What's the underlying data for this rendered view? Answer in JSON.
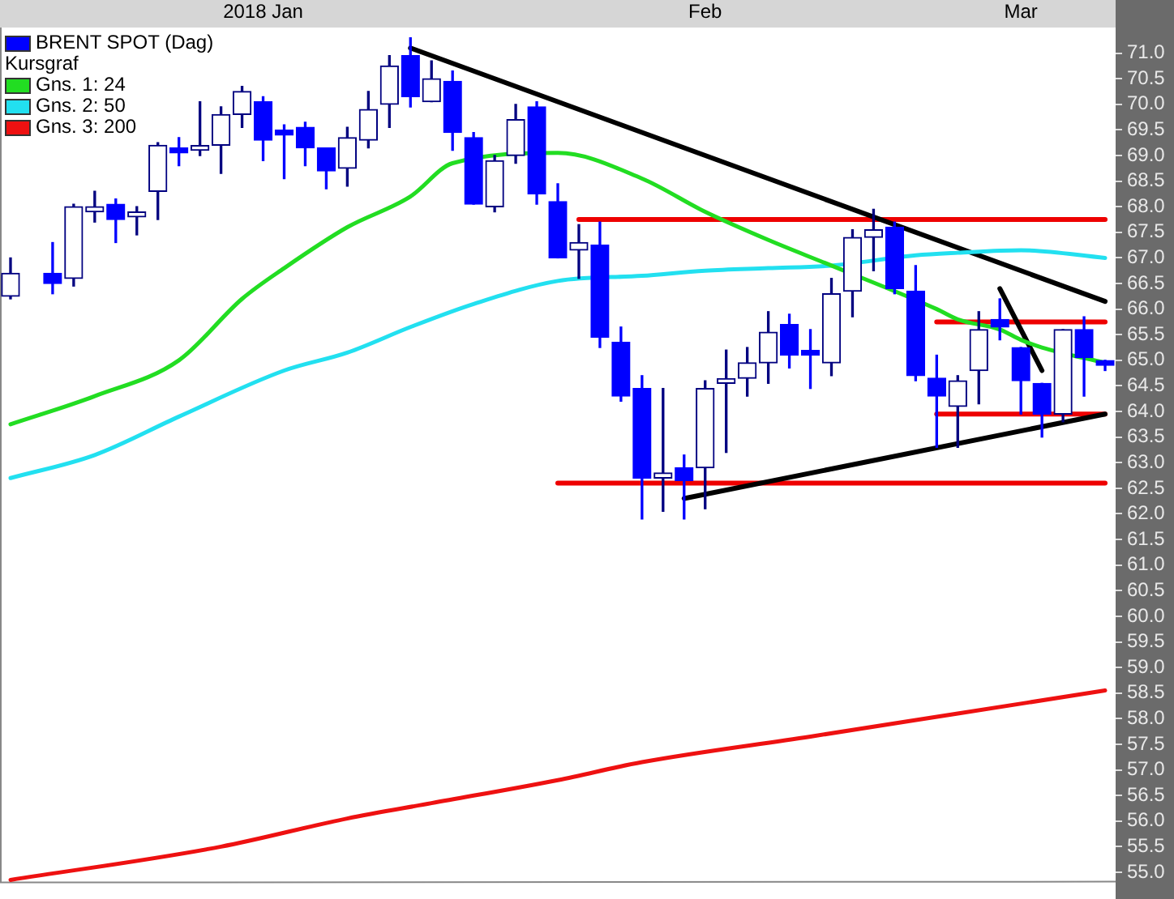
{
  "chart_data": {
    "type": "candlestick",
    "legend_title": "Kursgraf",
    "legend": "top left",
    "grid": false,
    "categories": [
      null,
      null,
      null,
      null,
      null,
      null,
      null,
      null,
      null,
      null,
      null,
      null,
      "2018 Jan",
      null,
      null,
      null,
      null,
      null,
      null,
      null,
      null,
      null,
      null,
      null,
      null,
      null,
      null,
      null,
      null,
      null,
      null,
      null,
      null,
      "Feb",
      null,
      null,
      null,
      null,
      null,
      null,
      null,
      null,
      null,
      null,
      null,
      null,
      null,
      null,
      "Mar",
      null,
      null,
      null,
      null
    ],
    "ylim": [
      54.8,
      71.5
    ],
    "yticks": [
      {
        "value": 55,
        "label": "55.0"
      },
      {
        "value": 55.5,
        "label": "55.5"
      },
      {
        "value": 56,
        "label": "56.0"
      },
      {
        "value": 56.5,
        "label": "56.5"
      },
      {
        "value": 57,
        "label": "57.0"
      },
      {
        "value": 57.5,
        "label": "57.5"
      },
      {
        "value": 58,
        "label": "58.0"
      },
      {
        "value": 58.5,
        "label": "58.5"
      },
      {
        "value": 59,
        "label": "59.0"
      },
      {
        "value": 59.5,
        "label": "59.5"
      },
      {
        "value": 60,
        "label": "60.0"
      },
      {
        "value": 60.5,
        "label": "60.5"
      },
      {
        "value": 61,
        "label": "61.0"
      },
      {
        "value": 61.5,
        "label": "61.5"
      },
      {
        "value": 62,
        "label": "62.0"
      },
      {
        "value": 62.5,
        "label": "62.5"
      },
      {
        "value": 63,
        "label": "63.0"
      },
      {
        "value": 63.5,
        "label": "63.5"
      },
      {
        "value": 64,
        "label": "64.0"
      },
      {
        "value": 64.5,
        "label": "64.5"
      },
      {
        "value": 65,
        "label": "65.0"
      },
      {
        "value": 65.5,
        "label": "65.5"
      },
      {
        "value": 66,
        "label": "66.0"
      },
      {
        "value": 66.5,
        "label": "66.5"
      },
      {
        "value": 67,
        "label": "67.0"
      },
      {
        "value": 67.5,
        "label": "67.5"
      },
      {
        "value": 68,
        "label": "68.0"
      },
      {
        "value": 68.5,
        "label": "68.5"
      },
      {
        "value": 69,
        "label": "69.0"
      },
      {
        "value": 69.5,
        "label": "69.5"
      },
      {
        "value": 70,
        "label": "70.0"
      },
      {
        "value": 70.5,
        "label": "70.5"
      },
      {
        "value": 71,
        "label": "71.0"
      }
    ],
    "series": [
      {
        "type": "line",
        "name": "Gns. 1: 24",
        "color": "#22dd22",
        "values": [
          63.75,
          null,
          null,
          null,
          64.3,
          null,
          null,
          null,
          65.0,
          null,
          null,
          66.2,
          null,
          66.8,
          null,
          null,
          67.6,
          null,
          null,
          68.2,
          null,
          68.85,
          null,
          null,
          null,
          null,
          69.05,
          null,
          null,
          null,
          68.55,
          null,
          null,
          67.9,
          null,
          null,
          67.35,
          null,
          null,
          66.85,
          null,
          null,
          null,
          null,
          66.0,
          65.8,
          null,
          65.6,
          65.4,
          65.25,
          null,
          null,
          64.95
        ]
      },
      {
        "type": "line",
        "name": "Gns. 2: 50",
        "color": "#22e0f0",
        "values": [
          62.7,
          null,
          null,
          null,
          63.15,
          null,
          null,
          null,
          63.9,
          null,
          null,
          null,
          null,
          64.8,
          null,
          null,
          65.15,
          null,
          null,
          65.65,
          null,
          null,
          66.1,
          null,
          null,
          null,
          66.55,
          null,
          null,
          null,
          66.65,
          null,
          null,
          66.75,
          null,
          null,
          66.8,
          null,
          null,
          66.85,
          null,
          null,
          null,
          67.05,
          null,
          67.1,
          null,
          null,
          67.15,
          null,
          null,
          null,
          67.0
        ]
      },
      {
        "type": "line",
        "name": "Gns. 3: 200",
        "color": "#ee1111",
        "values": [
          54.85,
          null,
          null,
          null,
          null,
          null,
          null,
          null,
          null,
          null,
          55.5,
          null,
          null,
          null,
          null,
          null,
          56.05,
          null,
          null,
          null,
          56.35,
          null,
          null,
          null,
          null,
          null,
          56.8,
          null,
          null,
          null,
          57.15,
          null,
          null,
          null,
          null,
          null,
          null,
          null,
          57.65,
          null,
          null,
          null,
          null,
          null,
          null,
          58.1,
          null,
          null,
          null,
          null,
          null,
          null,
          58.55
        ]
      },
      {
        "type": "line",
        "color": "#000000",
        "values": [
          null,
          null,
          null,
          null,
          null,
          null,
          null,
          null,
          null,
          null,
          null,
          null,
          null,
          null,
          null,
          null,
          null,
          null,
          null,
          71.1,
          null,
          null,
          null,
          null,
          null,
          null,
          null,
          null,
          null,
          null,
          null,
          null,
          null,
          null,
          null,
          null,
          null,
          null,
          null,
          null,
          null,
          null,
          null,
          null,
          null,
          null,
          null,
          null,
          null,
          null,
          null,
          null,
          66.15
        ]
      },
      {
        "type": "line",
        "color": "#000000",
        "values": [
          null,
          null,
          null,
          null,
          null,
          null,
          null,
          null,
          null,
          null,
          null,
          null,
          null,
          null,
          null,
          null,
          null,
          null,
          null,
          null,
          null,
          null,
          null,
          null,
          null,
          null,
          null,
          null,
          null,
          null,
          null,
          null,
          62.3,
          null,
          null,
          null,
          null,
          null,
          null,
          null,
          null,
          null,
          null,
          null,
          null,
          null,
          null,
          null,
          null,
          null,
          null,
          null,
          63.95
        ]
      },
      {
        "type": "line",
        "color": "#000000",
        "values": [
          null,
          null,
          null,
          null,
          null,
          null,
          null,
          null,
          null,
          null,
          null,
          null,
          null,
          null,
          null,
          null,
          null,
          null,
          null,
          null,
          null,
          null,
          null,
          null,
          null,
          null,
          null,
          null,
          null,
          null,
          null,
          null,
          null,
          null,
          null,
          null,
          null,
          null,
          null,
          null,
          null,
          null,
          null,
          null,
          null,
          null,
          null,
          66.4,
          null,
          64.8,
          null,
          null,
          null
        ]
      },
      {
        "type": "line",
        "color": "#ee0000",
        "values": [
          null,
          null,
          null,
          null,
          null,
          null,
          null,
          null,
          null,
          null,
          null,
          null,
          null,
          null,
          null,
          null,
          null,
          null,
          null,
          null,
          null,
          null,
          null,
          null,
          null,
          null,
          null,
          67.75,
          null,
          null,
          null,
          null,
          null,
          null,
          null,
          null,
          null,
          null,
          null,
          null,
          null,
          null,
          null,
          null,
          null,
          null,
          null,
          null,
          null,
          null,
          null,
          null,
          67.75
        ]
      },
      {
        "type": "line",
        "color": "#ee0000",
        "values": [
          null,
          null,
          null,
          null,
          null,
          null,
          null,
          null,
          null,
          null,
          null,
          null,
          null,
          null,
          null,
          null,
          null,
          null,
          null,
          null,
          null,
          null,
          null,
          null,
          null,
          null,
          62.6,
          null,
          null,
          null,
          null,
          null,
          null,
          null,
          null,
          null,
          null,
          null,
          null,
          null,
          null,
          null,
          null,
          null,
          null,
          null,
          null,
          null,
          null,
          null,
          null,
          null,
          62.6
        ]
      },
      {
        "type": "line",
        "color": "#ee0000",
        "values": [
          null,
          null,
          null,
          null,
          null,
          null,
          null,
          null,
          null,
          null,
          null,
          null,
          null,
          null,
          null,
          null,
          null,
          null,
          null,
          null,
          null,
          null,
          null,
          null,
          null,
          null,
          null,
          null,
          null,
          null,
          null,
          null,
          null,
          null,
          null,
          null,
          null,
          null,
          null,
          null,
          null,
          null,
          null,
          null,
          65.75,
          null,
          null,
          null,
          null,
          null,
          null,
          null,
          65.75
        ]
      },
      {
        "type": "line",
        "color": "#ee0000",
        "values": [
          null,
          null,
          null,
          null,
          null,
          null,
          null,
          null,
          null,
          null,
          null,
          null,
          null,
          null,
          null,
          null,
          null,
          null,
          null,
          null,
          null,
          null,
          null,
          null,
          null,
          null,
          null,
          null,
          null,
          null,
          null,
          null,
          null,
          null,
          null,
          null,
          null,
          null,
          null,
          null,
          null,
          null,
          null,
          null,
          63.95,
          null,
          null,
          null,
          null,
          null,
          null,
          null,
          63.95
        ]
      },
      {
        "type": "candlestick",
        "name": "BRENT SPOT (Dag)",
        "color": "#0000ff",
        "colors": [
          "#000080",
          null,
          "#0000ff",
          "#000080",
          "#000080",
          "#0000ff",
          "#000080",
          "#000080",
          "#0000ff",
          "#000080",
          "#000080",
          "#000080",
          "#0000ff",
          "#0000ff",
          "#0000ff",
          "#0000ff",
          "#000080",
          "#000080",
          "#000080",
          "#0000ff",
          "#000080",
          "#0000ff",
          "#0000ff",
          "#000080",
          "#000080",
          "#0000ff",
          "#0000ff",
          "#000080",
          "#0000ff",
          "#0000ff",
          "#0000ff",
          "#000080",
          "#0000ff",
          "#000080",
          "#000080",
          "#000080",
          "#000080",
          "#0000ff",
          "#0000ff",
          "#000080",
          "#000080",
          "#000080",
          "#0000ff",
          "#0000ff",
          "#0000ff",
          "#000080",
          "#000080",
          "#0000ff",
          "#0000ff",
          "#0000ff",
          "#000080",
          "#0000ff",
          "#0000ff"
        ],
        "ohlc": [
          [
            66.25,
            67.0,
            66.2,
            66.7
          ],
          null,
          [
            66.7,
            67.3,
            66.3,
            66.5
          ],
          [
            66.6,
            68.05,
            66.45,
            68.0
          ],
          [
            67.9,
            68.3,
            67.7,
            68.0
          ],
          [
            68.05,
            68.15,
            67.3,
            67.75
          ],
          [
            67.8,
            68.0,
            67.45,
            67.9
          ],
          [
            68.3,
            69.25,
            67.75,
            69.2
          ],
          [
            69.15,
            69.35,
            68.8,
            69.05
          ],
          [
            69.1,
            70.05,
            69.0,
            69.15
          ],
          [
            69.2,
            69.95,
            68.65,
            69.8
          ],
          [
            69.8,
            70.35,
            69.55,
            70.25
          ],
          [
            70.05,
            70.15,
            68.9,
            69.3
          ],
          [
            69.45,
            69.6,
            68.55,
            69.4
          ],
          [
            69.55,
            69.65,
            68.8,
            69.15
          ],
          [
            69.15,
            69.15,
            68.35,
            68.7
          ],
          [
            68.75,
            69.55,
            68.4,
            69.35
          ],
          [
            69.3,
            70.25,
            69.15,
            69.9
          ],
          [
            70.0,
            70.95,
            69.55,
            70.75
          ],
          [
            70.95,
            71.3,
            69.95,
            70.15
          ],
          [
            70.05,
            70.85,
            70.05,
            70.5
          ],
          [
            70.45,
            70.65,
            69.1,
            69.45
          ],
          [
            69.35,
            69.45,
            68.05,
            68.05
          ],
          [
            68.0,
            69.0,
            67.9,
            68.9
          ],
          [
            69.0,
            70.0,
            68.85,
            69.7
          ],
          [
            69.95,
            70.05,
            68.05,
            68.25
          ],
          [
            68.1,
            68.45,
            67.0,
            67.0
          ],
          [
            67.15,
            67.65,
            66.6,
            67.3
          ],
          [
            67.25,
            67.7,
            65.25,
            65.45
          ],
          [
            65.35,
            65.65,
            64.2,
            64.3
          ],
          [
            64.45,
            64.7,
            61.9,
            62.7
          ],
          [
            62.7,
            64.45,
            62.05,
            62.8
          ],
          [
            62.9,
            63.15,
            61.9,
            62.65
          ],
          [
            62.9,
            64.6,
            62.1,
            64.45
          ],
          [
            64.55,
            65.2,
            63.2,
            64.6
          ],
          [
            64.65,
            65.25,
            64.3,
            64.95
          ],
          [
            64.95,
            65.95,
            64.55,
            65.55
          ],
          [
            65.7,
            65.9,
            64.85,
            65.1
          ],
          [
            65.15,
            65.6,
            64.45,
            65.1
          ],
          [
            64.95,
            66.6,
            64.7,
            66.3
          ],
          [
            66.35,
            67.55,
            65.85,
            67.4
          ],
          [
            67.4,
            67.95,
            66.75,
            67.55
          ],
          [
            67.6,
            67.7,
            66.3,
            66.4
          ],
          [
            66.35,
            66.85,
            64.6,
            64.7
          ],
          [
            64.65,
            65.1,
            63.3,
            64.3
          ],
          [
            64.1,
            64.7,
            63.3,
            64.6
          ],
          [
            64.8,
            65.95,
            64.15,
            65.6
          ],
          [
            65.8,
            66.2,
            65.4,
            65.65
          ],
          [
            65.25,
            65.25,
            63.95,
            64.6
          ],
          [
            64.55,
            64.55,
            63.5,
            63.95
          ],
          [
            63.95,
            65.6,
            63.8,
            65.6
          ],
          [
            65.6,
            65.85,
            64.3,
            65.05
          ],
          [
            64.95,
            65.0,
            64.8,
            64.9
          ]
        ]
      }
    ]
  }
}
